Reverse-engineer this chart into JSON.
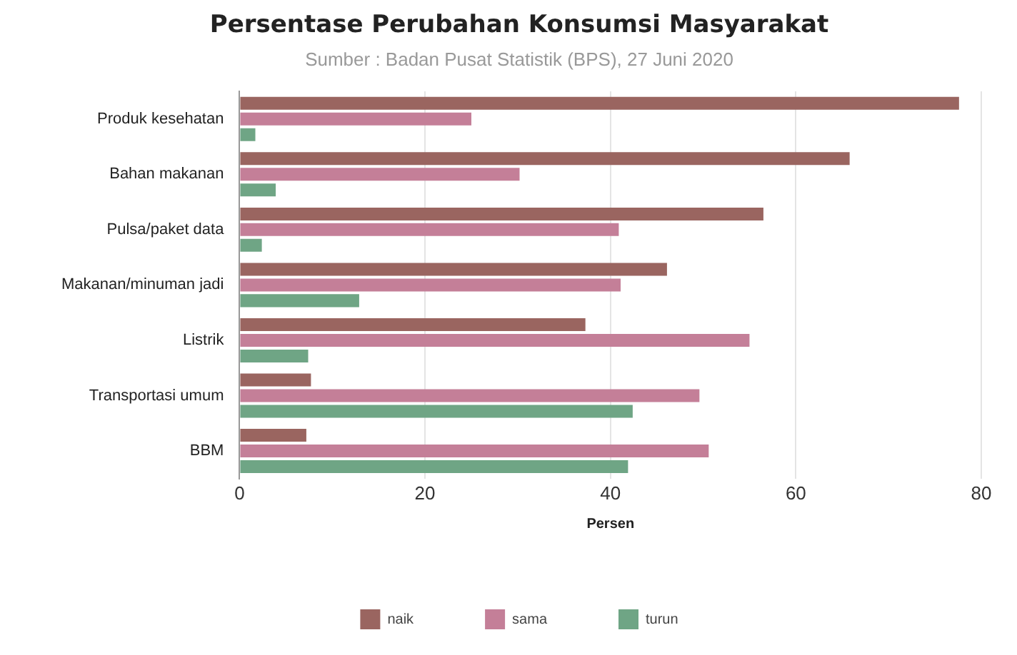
{
  "chart_data": {
    "type": "bar",
    "orientation": "horizontal",
    "title": "Persentase Perubahan Konsumsi Masyarakat",
    "subtitle": "Sumber : Badan Pusat Statistik (BPS), 27 Juni 2020",
    "xlabel": "Persen",
    "categories": [
      "Produk kesehatan",
      "Bahan makanan",
      "Pulsa/paket data",
      "Makanan/minuman jadi",
      "Listrik",
      "Transportasi umum",
      "BBM"
    ],
    "series": [
      {
        "name": "naik",
        "color": "#9a6560",
        "values": [
          77.6,
          65.8,
          56.5,
          46.1,
          37.3,
          7.7,
          7.2
        ]
      },
      {
        "name": "sama",
        "color": "#c47f98",
        "values": [
          25.0,
          30.2,
          40.9,
          41.1,
          55.0,
          49.6,
          50.6
        ]
      },
      {
        "name": "turun",
        "color": "#6fa585",
        "values": [
          1.7,
          3.9,
          2.4,
          12.9,
          7.4,
          42.4,
          41.9
        ]
      }
    ],
    "xlim": [
      0,
      80
    ],
    "xticks": [
      0,
      20,
      40,
      60,
      80
    ],
    "grid": "x",
    "legend": "bottom"
  }
}
